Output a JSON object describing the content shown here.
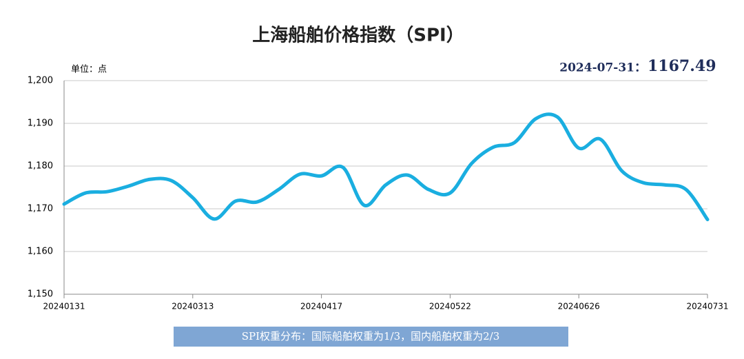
{
  "chart_data": {
    "type": "line",
    "title": "上海船舶价格指数（SPI）",
    "unit_label": "单位：点",
    "latest": {
      "label": "2024-07-31：",
      "value": 1167.49
    },
    "footnote": "SPI权重分布：国际船舶权重为1/3，国内船舶权重为2/3",
    "categories": [
      "20240131",
      null,
      null,
      null,
      null,
      null,
      "20240313",
      null,
      null,
      null,
      null,
      null,
      "20240417",
      null,
      null,
      null,
      null,
      null,
      "20240522",
      null,
      null,
      null,
      null,
      null,
      "20240626",
      null,
      null,
      null,
      null,
      null,
      "20240731"
    ],
    "series": [
      {
        "name": "SPI",
        "color": "#1aaee0",
        "values": [
          1171.1,
          1173.7,
          1174.0,
          1175.3,
          1176.9,
          1176.6,
          1172.6,
          1167.6,
          1171.8,
          1171.6,
          1174.5,
          1178.1,
          1177.7,
          1179.7,
          1170.8,
          1175.6,
          1177.9,
          1174.5,
          1173.7,
          1180.6,
          1184.4,
          1185.5,
          1191.1,
          1191.5,
          1184.2,
          1186.3,
          1178.9,
          1176.1,
          1175.6,
          1174.5,
          1167.49
        ]
      }
    ],
    "ylim": [
      1150,
      1200
    ],
    "yticks": [
      {
        "value": 1150,
        "label": "1,150"
      },
      {
        "value": 1160,
        "label": "1,160"
      },
      {
        "value": 1170,
        "label": "1,170"
      },
      {
        "value": 1180,
        "label": "1,180"
      },
      {
        "value": 1190,
        "label": "1,190"
      },
      {
        "value": 1200,
        "label": "1,200"
      }
    ],
    "grid": true
  }
}
